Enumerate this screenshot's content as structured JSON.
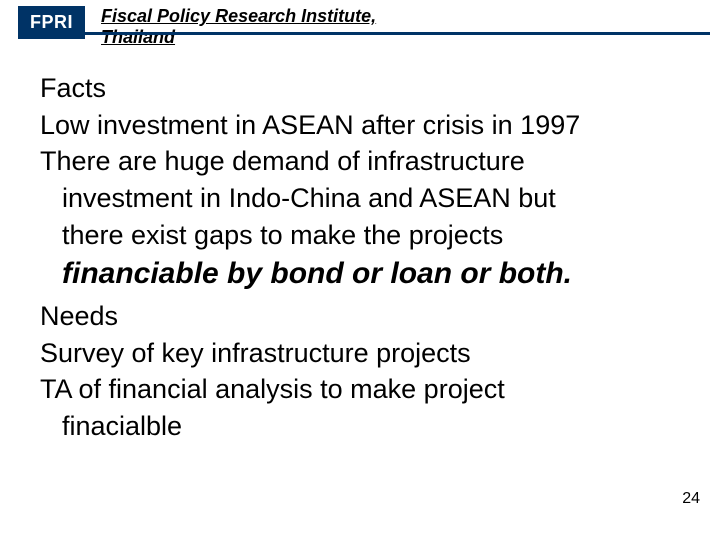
{
  "header": {
    "badge": "FPRI",
    "institute_line1": "Fiscal Policy Research Institute,",
    "institute_line2": "Thailand",
    "badge_bg": "#003366",
    "badge_fg": "#ffffff",
    "rule_color": "#003366"
  },
  "body": {
    "facts_heading": "Facts",
    "facts_p1": "Low investment in ASEAN after crisis in 1997",
    "facts_p2a": "There are huge demand of infrastructure",
    "facts_p2b": "investment in Indo-China and ASEAN but",
    "facts_p2c": "there exist gaps to make the projects",
    "emphasis": "financiable by bond or loan or both.",
    "needs_heading": "Needs",
    "needs_p1": "Survey of key infrastructure projects",
    "needs_p2a": " TA of financial analysis to make project",
    "needs_p2b": "finacialble"
  },
  "page_number": "24",
  "colors": {
    "background": "#ffffff",
    "text": "#000000"
  },
  "typography": {
    "body_fontsize_pt": 20,
    "emphasis_fontsize_pt": 22,
    "header_fontsize_pt": 14,
    "font_family": "Arial"
  }
}
